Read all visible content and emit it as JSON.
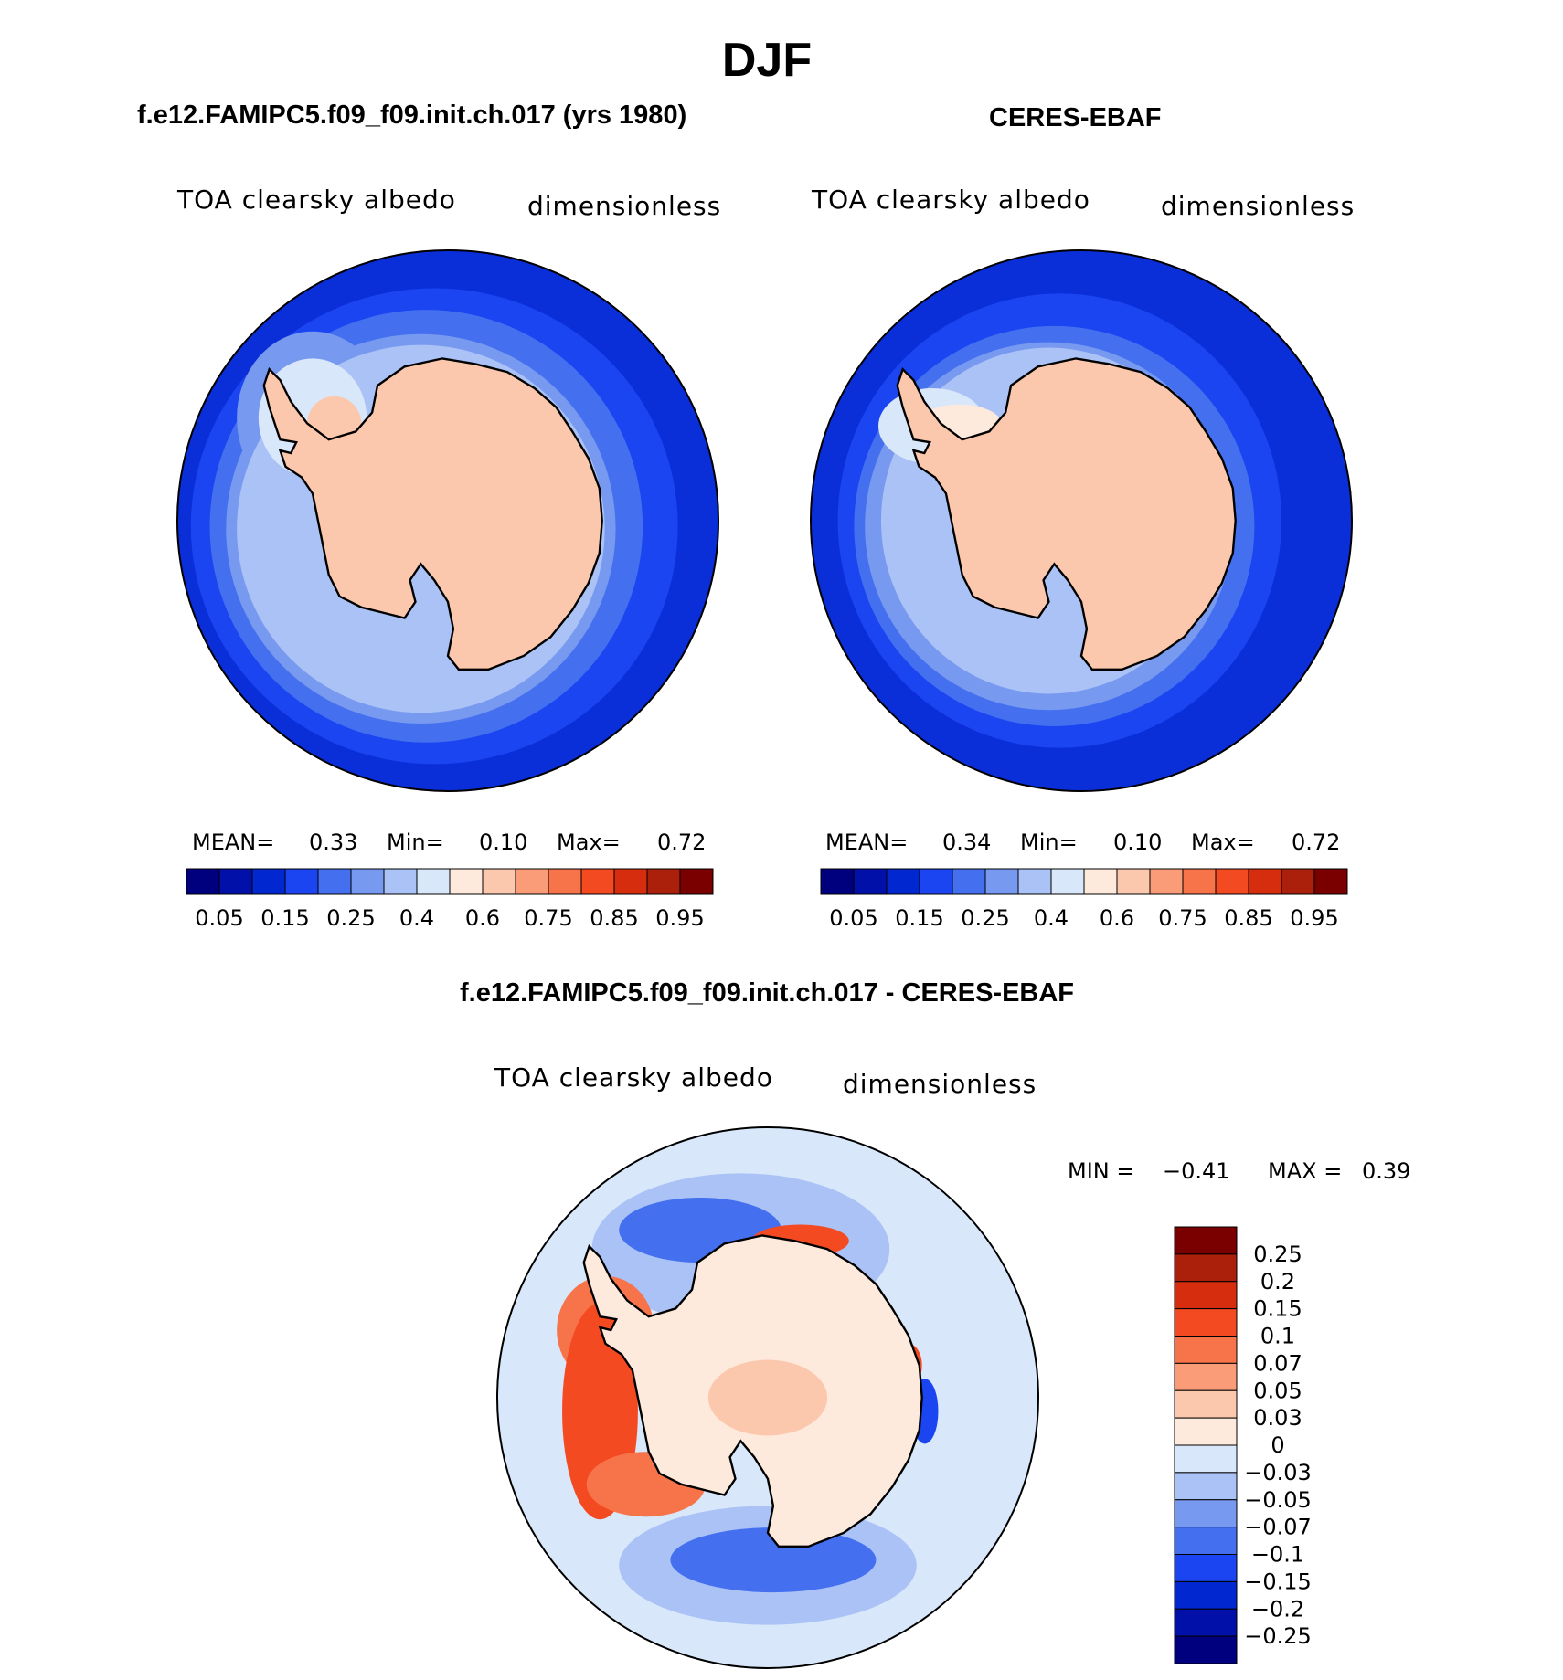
{
  "title": "DJF",
  "panels": [
    {
      "title": "f.e12.FAMIPC5.f09_f09.init.ch.017 (yrs 1980)",
      "variable": "TOA clearsky albedo",
      "units": "dimensionless",
      "mean_label": "MEAN=",
      "mean_value": "0.33",
      "min_label": "Min=",
      "min_value": "0.10",
      "max_label": "Max=",
      "max_value": "0.72"
    },
    {
      "title": "CERES-EBAF",
      "variable": "TOA clearsky albedo",
      "units": "dimensionless",
      "mean_label": "MEAN=",
      "mean_value": "0.34",
      "min_label": "Min=",
      "min_value": "0.10",
      "max_label": "Max=",
      "max_value": "0.72"
    }
  ],
  "difference": {
    "title": "f.e12.FAMIPC5.f09_f09.init.ch.017 - CERES-EBAF",
    "variable": "TOA clearsky albedo",
    "units": "dimensionless",
    "min_label": "MIN =",
    "min_value": "−0.41",
    "max_label": "MAX =",
    "max_value": "0.39"
  },
  "chart_data": [
    {
      "type": "heatmap",
      "projection": "south polar stereographic",
      "title": "f.e12.FAMIPC5.f09_f09.init.ch.017 (yrs 1980)",
      "colorbar": {
        "orientation": "horizontal",
        "labels": [
          "0.05",
          "0.15",
          "0.25",
          "0.4",
          "0.6",
          "0.75",
          "0.85",
          "0.95"
        ],
        "colors": [
          "#00007f",
          "#0010a8",
          "#0027d0",
          "#1a45f0",
          "#4470f0",
          "#7899f0",
          "#aac2f5",
          "#d8e7fa",
          "#feeadc",
          "#fcc8ad",
          "#fa9c77",
          "#f7744b",
          "#f34a22",
          "#d62d0e",
          "#aa200a",
          "#7a0000"
        ]
      },
      "stats": {
        "mean": 0.33,
        "min": 0.1,
        "max": 0.72
      }
    },
    {
      "type": "heatmap",
      "projection": "south polar stereographic",
      "title": "CERES-EBAF",
      "colorbar": {
        "orientation": "horizontal",
        "labels": [
          "0.05",
          "0.15",
          "0.25",
          "0.4",
          "0.6",
          "0.75",
          "0.85",
          "0.95"
        ],
        "colors": [
          "#00007f",
          "#0010a8",
          "#0027d0",
          "#1a45f0",
          "#4470f0",
          "#7899f0",
          "#aac2f5",
          "#d8e7fa",
          "#feeadc",
          "#fcc8ad",
          "#fa9c77",
          "#f7744b",
          "#f34a22",
          "#d62d0e",
          "#aa200a",
          "#7a0000"
        ]
      },
      "stats": {
        "mean": 0.34,
        "min": 0.1,
        "max": 0.72
      }
    },
    {
      "type": "heatmap",
      "projection": "south polar stereographic",
      "title": "f.e12.FAMIPC5.f09_f09.init.ch.017 - CERES-EBAF",
      "colorbar": {
        "orientation": "vertical",
        "labels": [
          "0.25",
          "0.2",
          "0.15",
          "0.1",
          "0.07",
          "0.05",
          "0.03",
          "0",
          "−0.03",
          "−0.05",
          "−0.07",
          "−0.1",
          "−0.15",
          "−0.2",
          "−0.25"
        ],
        "colors": [
          "#7a0000",
          "#aa200a",
          "#d62d0e",
          "#f34a22",
          "#f7744b",
          "#fa9c77",
          "#fcc8ad",
          "#feeadc",
          "#d8e7fa",
          "#aac2f5",
          "#7899f0",
          "#4470f0",
          "#1a45f0",
          "#0027d0",
          "#0010a8",
          "#00007f"
        ]
      },
      "stats": {
        "min": -0.41,
        "max": 0.39
      }
    }
  ]
}
